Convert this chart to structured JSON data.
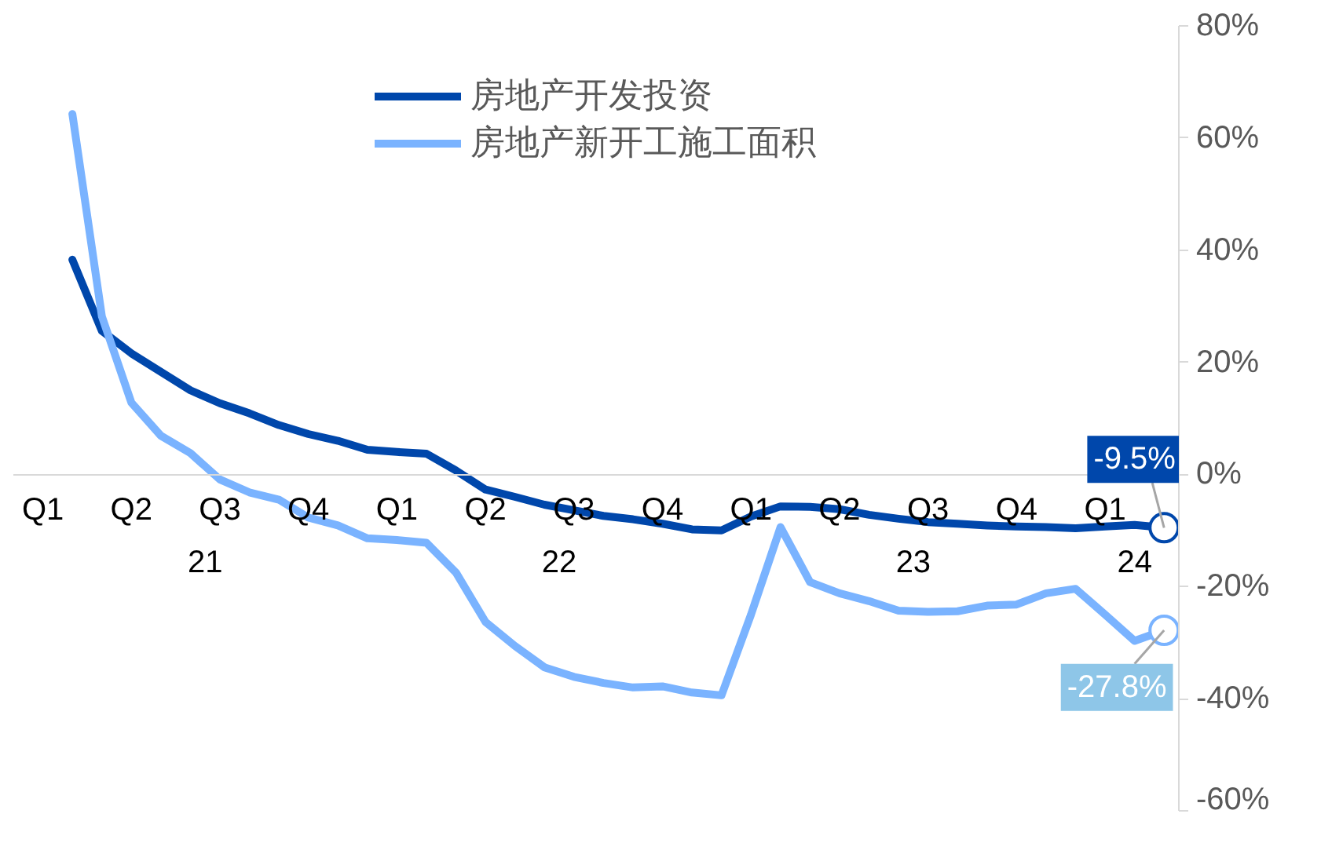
{
  "chart_data": {
    "type": "line",
    "categories": [
      "Q1",
      null,
      null,
      "Q2",
      null,
      null,
      "Q3",
      null,
      null,
      "Q4",
      null,
      null,
      "Q1",
      null,
      null,
      "Q2",
      null,
      null,
      "Q3",
      null,
      null,
      "Q4",
      null,
      null,
      "Q1",
      null,
      null,
      "Q2",
      null,
      null,
      "Q3",
      null,
      null,
      "Q4",
      null,
      null,
      "Q1",
      null,
      null
    ],
    "series": [
      {
        "name": "房地产开发投资",
        "color": "#0047ab",
        "values": [
          null,
          38.3,
          25.6,
          21.6,
          18.3,
          15.0,
          12.7,
          10.9,
          8.8,
          7.2,
          6.0,
          4.4,
          4.0,
          3.7,
          0.7,
          -2.7,
          -4.0,
          -5.4,
          -6.4,
          -7.4,
          -8.0,
          -8.8,
          -9.8,
          -10.0,
          -7.5,
          -5.7,
          -5.8,
          -6.2,
          -7.2,
          -7.9,
          -8.5,
          -8.8,
          -9.1,
          -9.3,
          -9.4,
          -9.6,
          -9.3,
          -9.0,
          -9.5
        ],
        "value_labels": [
          null,
          null,
          null,
          null,
          null,
          null,
          null,
          null,
          null,
          null,
          null,
          null,
          null,
          null,
          null,
          null,
          null,
          null,
          null,
          null,
          null,
          null,
          null,
          null,
          null,
          null,
          null,
          null,
          null,
          null,
          null,
          null,
          null,
          null,
          null,
          null,
          null,
          null,
          "-9.5%"
        ]
      },
      {
        "name": "房地产新开工施工面积",
        "color": "#7ab3ff",
        "values": [
          null,
          64.3,
          28.2,
          12.8,
          6.9,
          3.8,
          -0.9,
          -3.2,
          -4.5,
          -7.7,
          -9.1,
          -11.4,
          -11.7,
          -12.2,
          -17.5,
          -26.3,
          -30.6,
          -34.4,
          -36.1,
          -37.2,
          -38.0,
          -37.8,
          -38.9,
          -39.4,
          -25.0,
          -9.4,
          -19.2,
          -21.2,
          -22.6,
          -24.3,
          -24.5,
          -24.4,
          -23.4,
          -23.2,
          -21.2,
          -20.4,
          -25.0,
          -29.7,
          -27.8
        ],
        "value_labels": [
          null,
          null,
          null,
          null,
          null,
          null,
          null,
          null,
          null,
          null,
          null,
          null,
          null,
          null,
          null,
          null,
          null,
          null,
          null,
          null,
          null,
          null,
          null,
          null,
          null,
          null,
          null,
          null,
          null,
          null,
          null,
          null,
          null,
          null,
          null,
          null,
          null,
          null,
          "-27.8%"
        ]
      }
    ],
    "ylim": [
      -60,
      80
    ],
    "yticks": [
      {
        "value": -60,
        "label": "-60%"
      },
      {
        "value": -40,
        "label": "-40%"
      },
      {
        "value": -20,
        "label": "-20%"
      },
      {
        "value": 0,
        "label": "0%"
      },
      {
        "value": 20,
        "label": "20%"
      },
      {
        "value": 40,
        "label": "40%"
      },
      {
        "value": 60,
        "label": "60%"
      },
      {
        "value": 80,
        "label": "80%"
      }
    ],
    "annotations": [
      "21",
      "22",
      "23",
      "24"
    ],
    "legend": "top",
    "grid": false,
    "marker": "none",
    "line_style": "solid"
  }
}
